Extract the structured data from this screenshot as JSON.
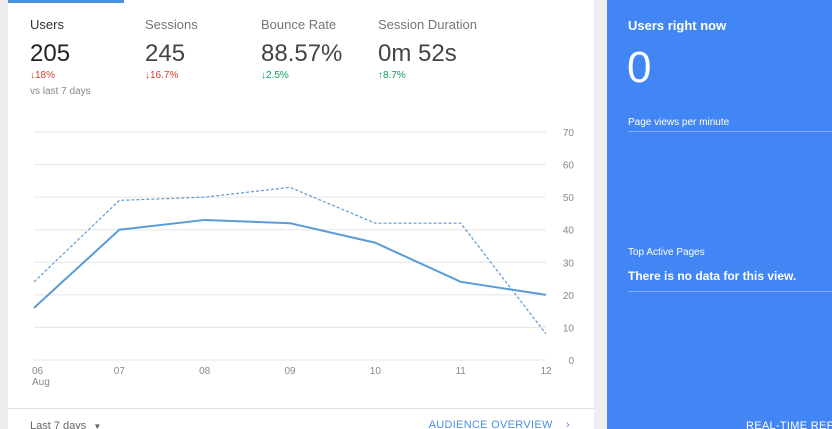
{
  "metrics": [
    {
      "label": "Users",
      "value": "205",
      "change": "18%",
      "direction": "down",
      "compare": "vs last 7 days"
    },
    {
      "label": "Sessions",
      "value": "245",
      "change": "16.7%",
      "direction": "down"
    },
    {
      "label": "Bounce Rate",
      "value": "88.57%",
      "change": "2.5%",
      "direction": "down"
    },
    {
      "label": "Session Duration",
      "value": "0m 52s",
      "change": "8.7%",
      "direction": "up"
    }
  ],
  "chart_data": {
    "type": "line",
    "categories": [
      "06",
      "07",
      "08",
      "09",
      "10",
      "11",
      "12"
    ],
    "category_sublabels": [
      "Aug",
      "",
      "",
      "",
      "",
      "",
      ""
    ],
    "y_ticks": [
      0,
      10,
      20,
      30,
      40,
      50,
      60,
      70
    ],
    "ylim": [
      0,
      70
    ],
    "series": [
      {
        "values": [
          16,
          40,
          43,
          42,
          36,
          24,
          20
        ],
        "style": "solid",
        "color": "#5b9bd5"
      },
      {
        "values": [
          24,
          49,
          50,
          53,
          42,
          42,
          8
        ],
        "style": "dashed",
        "color": "#5b9bd5"
      }
    ],
    "grid": true
  },
  "footer": {
    "date_range": "Last 7 days",
    "link": "AUDIENCE OVERVIEW"
  },
  "realtime": {
    "title": "Users right now",
    "count": "0",
    "page_views_label": "Page views per minute",
    "top_pages_label": "Top Active Pages",
    "no_data": "There is no data for this view.",
    "report_link": "REAL-TIME REPO"
  }
}
